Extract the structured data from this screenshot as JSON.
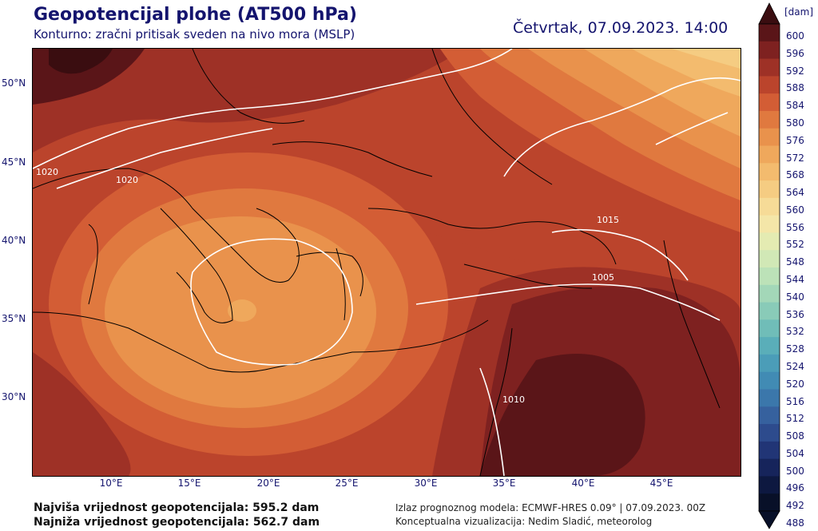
{
  "header": {
    "title": "Geopotencijal plohe (AT500 hPa)",
    "subtitle": "Konturno: zračni pritisak sveden na nivo mora (MSLP)",
    "datetime": "Četvrtak, 07.09.2023. 14:00"
  },
  "axes": {
    "x_ticks": [
      "10°E",
      "15°E",
      "20°E",
      "25°E",
      "30°E",
      "35°E",
      "40°E",
      "45°E"
    ],
    "y_ticks": [
      "50°N",
      "45°N",
      "40°N",
      "35°N",
      "30°N"
    ]
  },
  "contour_labels": [
    "1020",
    "1020",
    "1015",
    "1005",
    "1010"
  ],
  "colorbar": {
    "unit": "[dam]",
    "levels": [
      "600",
      "596",
      "592",
      "588",
      "584",
      "580",
      "576",
      "572",
      "568",
      "564",
      "560",
      "556",
      "552",
      "548",
      "544",
      "540",
      "536",
      "532",
      "528",
      "524",
      "520",
      "516",
      "512",
      "508",
      "504",
      "500",
      "496",
      "492",
      "488"
    ],
    "colors": {
      "600": "#3a0d10",
      "596": "#5a1518",
      "592": "#7e2120",
      "588": "#9e3126",
      "584": "#bb442c",
      "580": "#d35d35",
      "576": "#e0793f",
      "572": "#e9924c",
      "568": "#efa85c",
      "564": "#f3bb6e",
      "560": "#f5cc82",
      "556": "#f6db97",
      "552": "#f4e6a8",
      "548": "#e4ebb2",
      "544": "#d1e8b6",
      "540": "#bce2b8",
      "536": "#a3d7b8",
      "532": "#89cbb8",
      "528": "#70bdb8",
      "524": "#5aaeb9",
      "520": "#4b9db8",
      "516": "#418bb4",
      "512": "#3b77ab",
      "508": "#36619e",
      "504": "#2d4b8d",
      "500": "#213576",
      "496": "#16245b",
      "492": "#0d1840",
      "488": "#081028"
    }
  },
  "footer": {
    "max_label": "Najviša vrijednost geopotencijala: 595.2 dam",
    "min_label": "Najniža vrijednost geopotencijala: 562.7 dam",
    "model": "Izlaz prognoznog modela: ECMWF-HRES 0.09° | 07.09.2023. 00Z",
    "author": "Konceptualna vizualizacija: Nedim Sladić, meteorolog"
  }
}
